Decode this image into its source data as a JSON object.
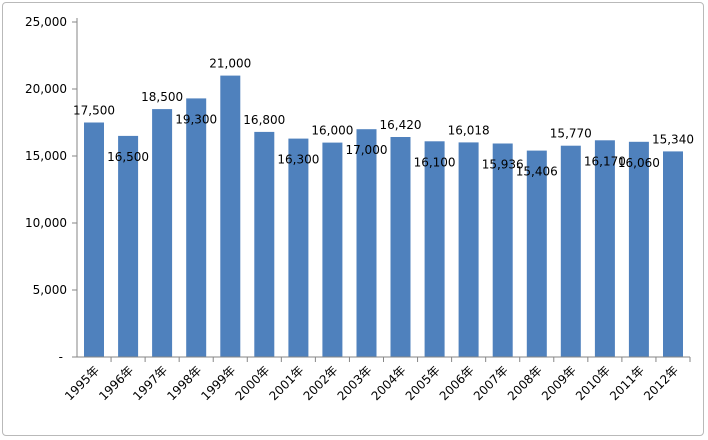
{
  "chart_data": {
    "type": "bar",
    "title": "",
    "xlabel": "",
    "ylabel": "",
    "categories": [
      "1995年",
      "1996年",
      "1997年",
      "1998年",
      "1999年",
      "2000年",
      "2001年",
      "2002年",
      "2003年",
      "2004年",
      "2005年",
      "2006年",
      "2007年",
      "2008年",
      "2009年",
      "2010年",
      "2011年",
      "2012年"
    ],
    "values": [
      17500,
      16500,
      18500,
      19300,
      21000,
      16800,
      16300,
      16000,
      17000,
      16420,
      16100,
      16018,
      15936,
      15406,
      15770,
      16170,
      16060,
      15340
    ],
    "data_labels": [
      "17,500",
      "16,500",
      "18,500",
      "19,300",
      "21,000",
      "16,800",
      "16,300",
      "16,000",
      "17,000",
      "16,420",
      "16,100",
      "16,018",
      "15,936",
      "15,406",
      "15,770",
      "16,170",
      "16,060",
      "15,340"
    ],
    "label_position": [
      "above",
      "inside",
      "above",
      "inside",
      "above",
      "above",
      "inside",
      "above",
      "inside",
      "above",
      "inside",
      "above",
      "inside",
      "inside",
      "above",
      "inside",
      "inside",
      "above"
    ],
    "ylim": [
      0,
      25000
    ],
    "yticks": [
      0,
      5000,
      10000,
      15000,
      20000,
      25000
    ],
    "ytick_labels": [
      "-",
      "5,000",
      "10,000",
      "15,000",
      "20,000",
      "25,000"
    ],
    "grid": false,
    "legend": "none",
    "bar_color": "#4f81bd"
  }
}
